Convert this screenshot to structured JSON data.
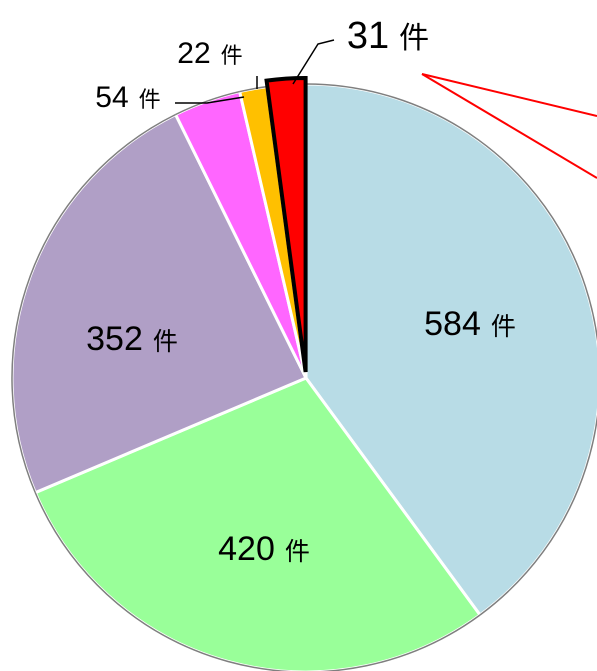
{
  "chart_data": {
    "type": "pie",
    "unit": "件",
    "slices": [
      {
        "value": 584,
        "label": "584",
        "color": "#b8dce6"
      },
      {
        "value": 420,
        "label": "420",
        "color": "#99ff99"
      },
      {
        "value": 352,
        "label": "352",
        "color": "#b09fc6"
      },
      {
        "value": 54,
        "label": "54",
        "color": "#ff66ff"
      },
      {
        "value": 22,
        "label": "22",
        "color": "#ffc000"
      },
      {
        "value": 31,
        "label": "31",
        "color": "#ff0000"
      }
    ],
    "start_angle_deg": 0,
    "direction": "clockwise",
    "highlighted_slice": 5,
    "outline_color": "#7f7f7f",
    "separator_color": "#ffffff",
    "highlight_border_color": "#000000",
    "leader_line_color": "#000000",
    "callout_line_color": "#ff0000"
  }
}
